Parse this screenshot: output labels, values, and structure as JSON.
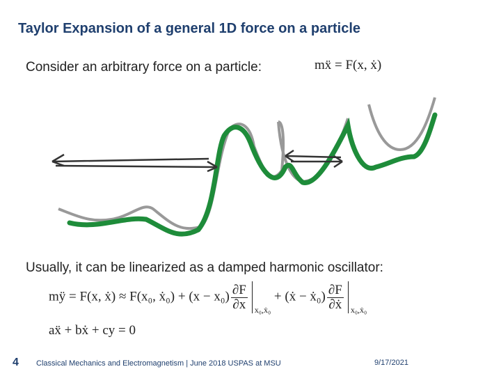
{
  "header": {
    "title": "Taylor Expansion of a general 1D force on a particle"
  },
  "content": {
    "intro": "Consider an arbitrary force on a particle:",
    "eq_motion": "mẍ = F(x, ẋ)",
    "linearize": "Usually, it can be linearized as a damped harmonic oscillator:",
    "taylor": {
      "lead": "mÿ = F(x, ẋ) ≈ F(x₀, ẋ₀) + (x − x₀)",
      "frac1": {
        "num": "∂F",
        "den": "∂x"
      },
      "eval1": "x₀,ẋ₀",
      "middle": "+ (ẋ − ẋ₀)",
      "frac2": {
        "num": "∂F",
        "den": "∂ẋ"
      },
      "eval2": "x₀,ẋ₀"
    },
    "eq_oscillator": "aẍ + bẋ + cy = 0"
  },
  "footer": {
    "page": "4",
    "text": "Classical Mechanics and Electromagnetism | June 2018 USPAS at MSU",
    "date": "9/17/2021"
  }
}
